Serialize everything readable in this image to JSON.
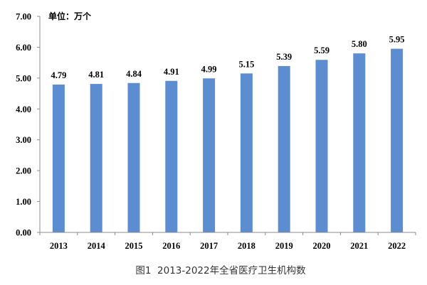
{
  "chart_data": {
    "type": "bar",
    "categories": [
      "2013",
      "2014",
      "2015",
      "2016",
      "2017",
      "2018",
      "2019",
      "2020",
      "2021",
      "2022"
    ],
    "values": [
      4.79,
      4.81,
      4.84,
      4.91,
      4.99,
      5.15,
      5.39,
      5.59,
      5.8,
      5.95
    ],
    "data_labels": [
      "4.79",
      "4.81",
      "4.84",
      "4.91",
      "4.99",
      "5.15",
      "5.39",
      "5.59",
      "5.80",
      "5.95"
    ],
    "ylim": [
      0,
      7
    ],
    "ytick_labels": [
      "0.00",
      "1.00",
      "2.00",
      "3.00",
      "4.00",
      "5.00",
      "6.00",
      "7.00"
    ],
    "unit_label": "单位：万个",
    "caption": "图1  2013-2022年全省医疗卫生机构数",
    "xlabel": "",
    "ylabel": "",
    "grid": false,
    "legend": "none",
    "bar_color": "#5B8DD0",
    "axis_color": "#8C8C8C"
  }
}
